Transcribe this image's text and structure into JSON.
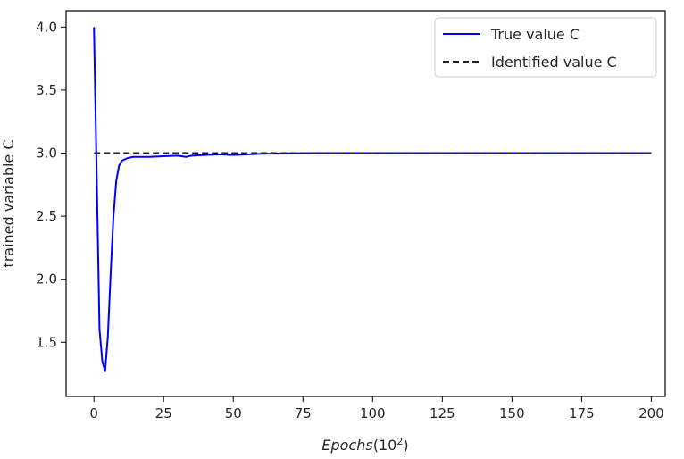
{
  "chart_data": {
    "type": "line",
    "xlabel": {
      "main": "Epochs",
      "paren": "(10",
      "exp": "2",
      "close": ")"
    },
    "ylabel": "trained variable C",
    "xlim": [
      -10,
      205
    ],
    "ylim": [
      1.07,
      4.13
    ],
    "xticks": [
      0,
      25,
      50,
      75,
      100,
      125,
      150,
      175,
      200
    ],
    "yticks": [
      1.5,
      2.0,
      2.5,
      3.0,
      3.5,
      4.0
    ],
    "xtick_labels": [
      "0",
      "25",
      "50",
      "75",
      "100",
      "125",
      "150",
      "175",
      "200"
    ],
    "ytick_labels": [
      "1.5",
      "2.0",
      "2.5",
      "3.0",
      "3.5",
      "4.0"
    ],
    "grid": false,
    "legend_position": "top-right",
    "series": [
      {
        "name": "True value C",
        "color": "#0000ff",
        "style": "solid",
        "x": [
          0,
          1,
          2,
          3,
          4,
          5,
          6,
          7,
          8,
          9,
          10,
          12,
          14,
          16,
          20,
          25,
          30,
          33,
          35,
          40,
          45,
          50,
          55,
          60,
          70,
          80,
          100,
          125,
          150,
          175,
          200
        ],
        "y": [
          4.0,
          2.8,
          1.6,
          1.35,
          1.27,
          1.55,
          2.05,
          2.5,
          2.78,
          2.9,
          2.94,
          2.96,
          2.97,
          2.97,
          2.97,
          2.975,
          2.98,
          2.97,
          2.98,
          2.985,
          2.99,
          2.985,
          2.99,
          2.995,
          2.998,
          3.0,
          3.0,
          3.0,
          3.0,
          3.0,
          3.0
        ]
      },
      {
        "name": "Identified value C",
        "color": "#222222",
        "style": "dashed",
        "x": [
          0,
          200
        ],
        "y": [
          3.0,
          3.0
        ]
      }
    ]
  }
}
